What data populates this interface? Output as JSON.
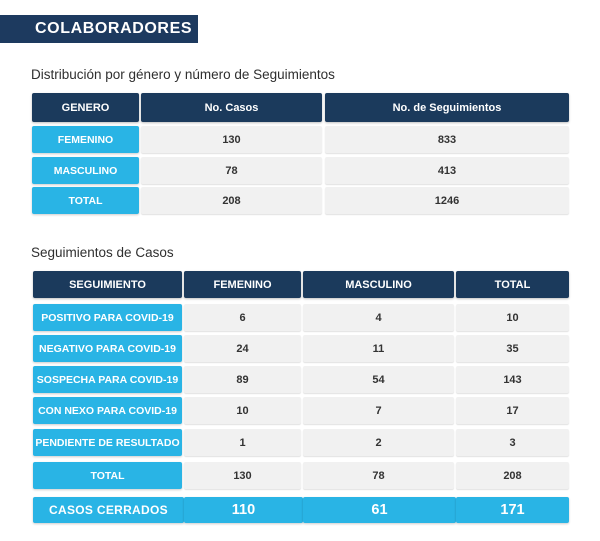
{
  "header": {
    "title": "COLABORADORES"
  },
  "table1": {
    "title": "Distribución por género y número de Seguimientos",
    "headers": [
      "GENERO",
      "No. Casos",
      "No. de Seguimientos"
    ],
    "rows": [
      {
        "label": "FEMENINO",
        "casos": "130",
        "seguimientos": "833"
      },
      {
        "label": "MASCULINO",
        "casos": "78",
        "seguimientos": "413"
      },
      {
        "label": "TOTAL",
        "casos": "208",
        "seguimientos": "1246"
      }
    ]
  },
  "table2": {
    "title": "Seguimientos de Casos",
    "headers": [
      "SEGUIMIENTO",
      "FEMENINO",
      "MASCULINO",
      "TOTAL"
    ],
    "rows": [
      {
        "label": "POSITIVO PARA COVID-19",
        "femenino": "6",
        "masculino": "4",
        "total": "10"
      },
      {
        "label": "NEGATIVO PARA COVID-19",
        "femenino": "24",
        "masculino": "11",
        "total": "35"
      },
      {
        "label": "SOSPECHA PARA COVID-19",
        "femenino": "89",
        "masculino": "54",
        "total": "143"
      },
      {
        "label": "CON NEXO PARA COVID-19",
        "femenino": "10",
        "masculino": "7",
        "total": "17"
      },
      {
        "label": "PENDIENTE DE RESULTADO",
        "femenino": "1",
        "masculino": "2",
        "total": "3"
      },
      {
        "label": "TOTAL",
        "femenino": "130",
        "masculino": "78",
        "total": "208"
      }
    ],
    "closed": {
      "label": "CASOS CERRADOS",
      "femenino": "110",
      "masculino": "61",
      "total": "171"
    }
  }
}
